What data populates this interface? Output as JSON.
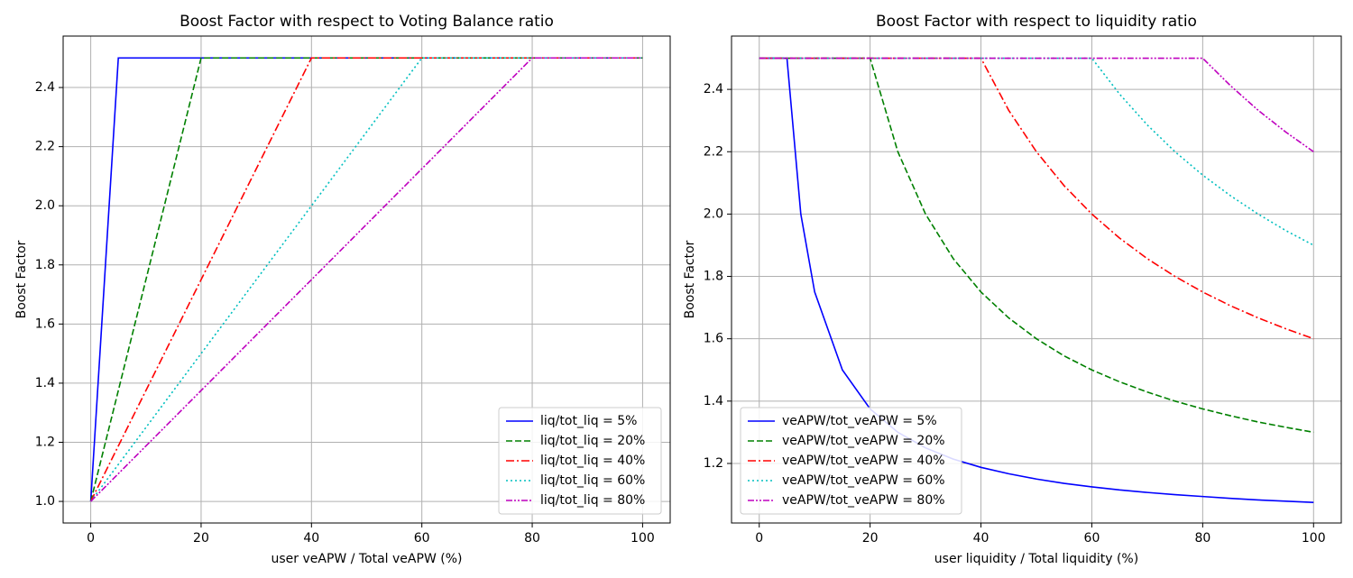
{
  "chart_data": [
    {
      "type": "line",
      "title": "Boost Factor with respect to Voting Balance ratio",
      "x_label": "user veAPW / Total veAPW (%)",
      "y_label": "Boost Factor",
      "x": [
        0,
        5,
        20,
        40,
        60,
        80,
        100
      ],
      "series": [
        {
          "name": "liq/tot_liq = 5%",
          "color": "#0000ff",
          "linestyle": "solid",
          "values": [
            1,
            2.5,
            2.5,
            2.5,
            2.5,
            2.5,
            2.5
          ]
        },
        {
          "name": "liq/tot_liq = 20%",
          "color": "#008000",
          "linestyle": "dashed",
          "values": [
            1,
            1.375,
            2.5,
            2.5,
            2.5,
            2.5,
            2.5
          ]
        },
        {
          "name": "liq/tot_liq = 40%",
          "color": "#ff0000",
          "linestyle": "dashdot",
          "values": [
            1,
            1.1875,
            1.75,
            2.5,
            2.5,
            2.5,
            2.5
          ]
        },
        {
          "name": "liq/tot_liq = 60%",
          "color": "#00bfbf",
          "linestyle": "dotted",
          "values": [
            1,
            1.125,
            1.5,
            2.0,
            2.5,
            2.5,
            2.5
          ]
        },
        {
          "name": "liq/tot_liq = 80%",
          "color": "#bf00bf",
          "linestyle": "dashdotdot",
          "values": [
            1,
            1.09375,
            1.375,
            1.75,
            2.125,
            2.5,
            2.5
          ]
        }
      ],
      "xlim": [
        -5,
        105
      ],
      "ylim": [
        0.927,
        2.574
      ],
      "xticks": [
        0,
        20,
        40,
        60,
        80,
        100
      ],
      "yticks": [
        {
          "value": 1.0,
          "label": "1.0"
        },
        {
          "value": 1.2,
          "label": "1.2"
        },
        {
          "value": 1.4,
          "label": "1.4"
        },
        {
          "value": 1.6,
          "label": "1.6"
        },
        {
          "value": 1.8,
          "label": "1.8"
        },
        {
          "value": 2.0,
          "label": "2.0"
        },
        {
          "value": 2.2,
          "label": "2.2"
        },
        {
          "value": 2.4,
          "label": "2.4"
        }
      ],
      "grid": true,
      "legend": "lower-right"
    },
    {
      "type": "line",
      "title": "Boost Factor with respect to liquidity ratio",
      "x_label": "user liquidity / Total liquidity (%)",
      "y_label": "Boost Factor",
      "x": [
        0,
        5,
        7.5,
        10,
        15,
        20,
        25,
        30,
        35,
        40,
        45,
        50,
        55,
        60,
        65,
        70,
        75,
        80,
        85,
        90,
        95,
        100
      ],
      "series": [
        {
          "name": "veAPW/tot_veAPW = 5%",
          "color": "#0000ff",
          "linestyle": "solid",
          "values": [
            2.5,
            2.5,
            2.0,
            1.75,
            1.5,
            1.375,
            1.3,
            1.25,
            1.214,
            1.1875,
            1.167,
            1.15,
            1.136,
            1.125,
            1.115,
            1.107,
            1.1,
            1.094,
            1.088,
            1.083,
            1.079,
            1.075
          ]
        },
        {
          "name": "veAPW/tot_veAPW = 20%",
          "color": "#008000",
          "linestyle": "dashed",
          "values": [
            2.5,
            2.5,
            2.5,
            2.5,
            2.5,
            2.5,
            2.2,
            2.0,
            1.857,
            1.75,
            1.667,
            1.6,
            1.545,
            1.5,
            1.462,
            1.429,
            1.4,
            1.375,
            1.353,
            1.333,
            1.316,
            1.3
          ]
        },
        {
          "name": "veAPW/tot_veAPW = 40%",
          "color": "#ff0000",
          "linestyle": "dashdot",
          "values": [
            2.5,
            2.5,
            2.5,
            2.5,
            2.5,
            2.5,
            2.5,
            2.5,
            2.5,
            2.5,
            2.333,
            2.2,
            2.091,
            2.0,
            1.923,
            1.857,
            1.8,
            1.75,
            1.706,
            1.667,
            1.632,
            1.6
          ]
        },
        {
          "name": "veAPW/tot_veAPW = 60%",
          "color": "#00bfbf",
          "linestyle": "dotted",
          "values": [
            2.5,
            2.5,
            2.5,
            2.5,
            2.5,
            2.5,
            2.5,
            2.5,
            2.5,
            2.5,
            2.5,
            2.5,
            2.5,
            2.5,
            2.385,
            2.286,
            2.2,
            2.125,
            2.059,
            2.0,
            1.947,
            1.9
          ]
        },
        {
          "name": "veAPW/tot_veAPW = 80%",
          "color": "#bf00bf",
          "linestyle": "dashdotdot",
          "values": [
            2.5,
            2.5,
            2.5,
            2.5,
            2.5,
            2.5,
            2.5,
            2.5,
            2.5,
            2.5,
            2.5,
            2.5,
            2.5,
            2.5,
            2.5,
            2.5,
            2.5,
            2.5,
            2.412,
            2.333,
            2.263,
            2.2
          ]
        }
      ],
      "xlim": [
        -5,
        105
      ],
      "ylim": [
        1.009,
        2.571
      ],
      "xticks": [
        0,
        20,
        40,
        60,
        80,
        100
      ],
      "yticks": [
        {
          "value": 1.2,
          "label": "1.2"
        },
        {
          "value": 1.4,
          "label": "1.4"
        },
        {
          "value": 1.6,
          "label": "1.6"
        },
        {
          "value": 1.8,
          "label": "1.8"
        },
        {
          "value": 2.0,
          "label": "2.0"
        },
        {
          "value": 2.2,
          "label": "2.2"
        },
        {
          "value": 2.4,
          "label": "2.4"
        }
      ],
      "grid": true,
      "legend": "lower-left"
    }
  ]
}
